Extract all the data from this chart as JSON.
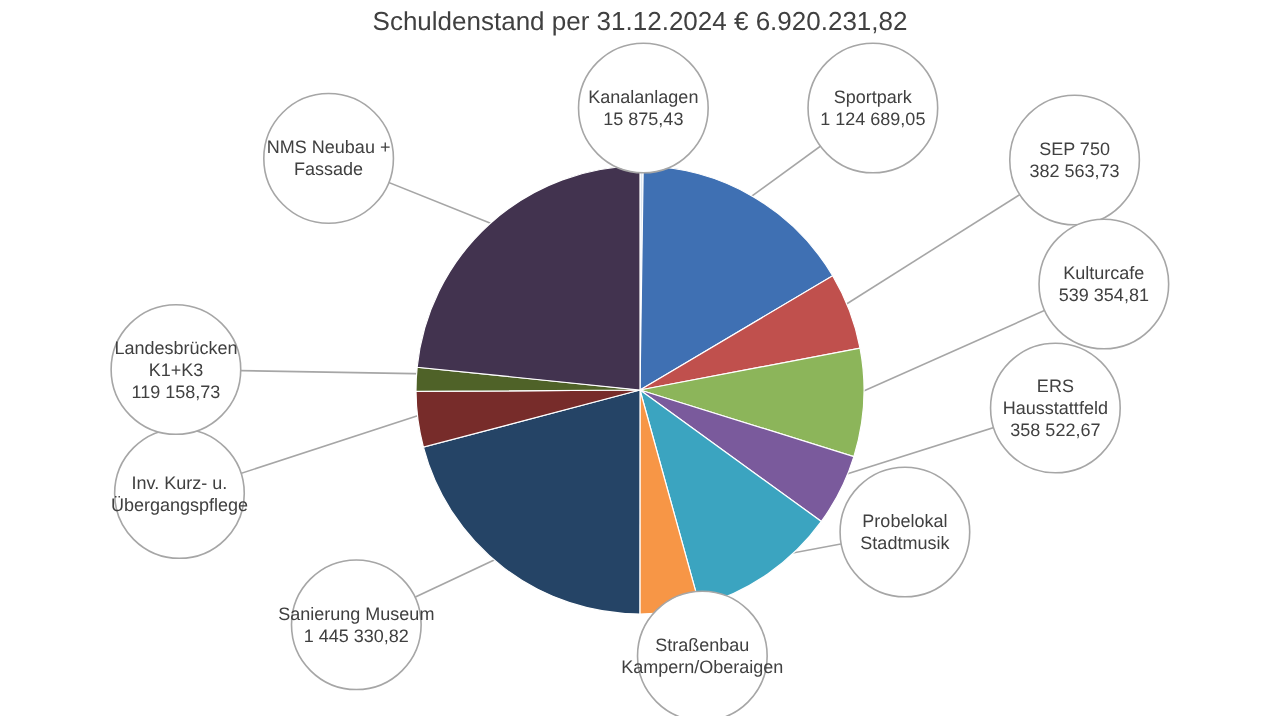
{
  "chart_data": {
    "type": "pie",
    "title": "Schuldenstand per 31.12.2024    € 6.920.231,82",
    "categories": [
      "Kanalanlagen",
      "Sportpark",
      "SEP 750",
      "Kulturcafe",
      "ERS Hausstattfeld",
      "Probelokal Stadtmusik",
      "Straßenbau Kampern/Oberaigen",
      "Sanierung Museum",
      "Inv. Kurz- u. Übergangspflege",
      "Landesbrücken K1+K3",
      "NMS Neubau + Fassade"
    ],
    "values": [
      15875.43,
      1124689.05,
      382563.73,
      539354.81,
      358522.67,
      742000,
      298000,
      1445330.82,
      277000,
      119158.73,
      1618000
    ],
    "value_labels": [
      "15 875,43",
      "1 124 689,05",
      "382 563,73",
      "539 354,81",
      "358 522,67",
      null,
      null,
      "1 445 330,82",
      null,
      "119 158,73",
      null
    ],
    "colors": [
      "#dbe5f1",
      "#3f70b3",
      "#c0504d",
      "#8cb55a",
      "#7a5a9c",
      "#3ba4c0",
      "#f79646",
      "#254466",
      "#772c2a",
      "#4f6228",
      "#42334f"
    ]
  }
}
